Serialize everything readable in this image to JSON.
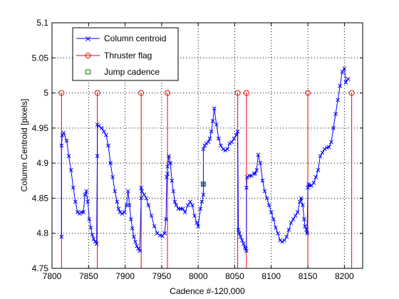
{
  "chart_data": {
    "type": "line",
    "xlabel": "Cadence #-120,000",
    "ylabel": "Column Centroid [pixels]",
    "xlim": [
      7800,
      8225
    ],
    "ylim": [
      4.75,
      5.1
    ],
    "x_ticks": [
      7800,
      7850,
      7900,
      7950,
      8000,
      8050,
      8100,
      8150,
      8200
    ],
    "y_ticks": [
      4.75,
      4.8,
      4.85,
      4.9,
      4.95,
      5,
      5.05,
      5.1
    ],
    "x_tick_labels": [
      "7800",
      "7850",
      "7900",
      "7950",
      "8000",
      "8050",
      "8100",
      "8150",
      "8200"
    ],
    "y_tick_labels": [
      "4.75",
      "4.8",
      "4.85",
      "4.9",
      "4.95",
      "5",
      "5.05",
      "5.1"
    ],
    "grid": true,
    "legend_position": "top-left",
    "series": [
      {
        "name": "Column centroid",
        "color": "#0000ff",
        "marker": "x",
        "x": [
          7813,
          7813,
          7814,
          7816,
          7820,
          7823,
          7826,
          7829,
          7832,
          7835,
          7838,
          7840,
          7843,
          7845,
          7847,
          7849,
          7851,
          7853,
          7855,
          7857,
          7859,
          7861,
          7862,
          7862,
          7864,
          7868,
          7871,
          7874,
          7877,
          7880,
          7883,
          7886,
          7889,
          7891,
          7893,
          7896,
          7899,
          7902,
          7904,
          7906,
          7908,
          7910,
          7912,
          7914,
          7916,
          7918,
          7920,
          7922,
          7922,
          7923,
          7926,
          7929,
          7932,
          7936,
          7940,
          7944,
          7948,
          7951,
          7954,
          7956,
          7957,
          7958,
          7958,
          7960,
          7962,
          7964,
          7966,
          7968,
          7970,
          7973,
          7976,
          7979,
          7982,
          7986,
          7989,
          7992,
          7995,
          7998,
          8000,
          8003,
          8005,
          8007,
          8007,
          8007,
          8009,
          8011,
          8014,
          8016,
          8018,
          8020,
          8022,
          8025,
          8028,
          8031,
          8034,
          8037,
          8040,
          8043,
          8046,
          8049,
          8052,
          8054,
          8055,
          8056,
          8058,
          8060,
          8062,
          8064,
          8065,
          8066,
          8066,
          8067,
          8070,
          8073,
          8076,
          8078,
          8080,
          8082,
          8085,
          8088,
          8091,
          8094,
          8097,
          8100,
          8103,
          8106,
          8109,
          8112,
          8115,
          8118,
          8121,
          8124,
          8127,
          8130,
          8133,
          8136,
          8139,
          8141,
          8143,
          8145,
          8146,
          8148,
          8149,
          8150,
          8151,
          8152,
          8155,
          8158,
          8161,
          8164,
          8167,
          8170,
          8173,
          8176,
          8179,
          8182,
          8185,
          8188,
          8191,
          8194,
          8197,
          8200,
          8202,
          8205
        ],
        "y": [
          4.795,
          4.925,
          4.94,
          4.943,
          4.932,
          4.91,
          4.89,
          4.865,
          4.845,
          4.83,
          4.828,
          4.83,
          4.83,
          4.855,
          4.86,
          4.845,
          4.82,
          4.808,
          4.798,
          4.792,
          4.788,
          4.785,
          4.91,
          4.955,
          4.953,
          4.95,
          4.945,
          4.94,
          4.925,
          4.9,
          4.88,
          4.86,
          4.845,
          4.835,
          4.83,
          4.828,
          4.83,
          4.84,
          4.86,
          4.84,
          4.82,
          4.807,
          4.795,
          4.788,
          4.782,
          4.778,
          4.775,
          4.85,
          4.865,
          4.86,
          4.855,
          4.85,
          4.84,
          4.825,
          4.81,
          4.8,
          4.797,
          4.796,
          4.8,
          4.82,
          4.88,
          4.885,
          4.895,
          4.91,
          4.9,
          4.875,
          4.86,
          4.845,
          4.84,
          4.835,
          4.835,
          4.835,
          4.83,
          4.84,
          4.845,
          4.84,
          4.825,
          4.815,
          4.81,
          4.835,
          4.845,
          4.855,
          4.87,
          4.92,
          4.925,
          4.928,
          4.93,
          4.935,
          4.945,
          4.96,
          4.978,
          4.955,
          4.935,
          4.925,
          4.92,
          4.918,
          4.92,
          4.928,
          4.93,
          4.935,
          4.94,
          4.945,
          4.805,
          4.8,
          4.795,
          4.79,
          4.785,
          4.78,
          4.778,
          4.775,
          4.865,
          4.88,
          4.882,
          4.882,
          4.885,
          4.885,
          4.89,
          4.912,
          4.9,
          4.875,
          4.86,
          4.85,
          4.84,
          4.83,
          4.82,
          4.808,
          4.8,
          4.79,
          4.788,
          4.79,
          4.795,
          4.805,
          4.815,
          4.82,
          4.825,
          4.83,
          4.845,
          4.85,
          4.84,
          4.82,
          4.81,
          4.805,
          4.8,
          4.865,
          4.87,
          4.868,
          4.868,
          4.872,
          4.88,
          4.89,
          4.91,
          4.915,
          4.92,
          4.922,
          4.923,
          4.93,
          4.95,
          4.97,
          4.99,
          5.01,
          5.03,
          5.035,
          5.015,
          5.02
        ]
      },
      {
        "name": "Thruster flag",
        "color": "#ff0000",
        "marker": "o",
        "x": [
          7813,
          7862,
          7922,
          7958,
          8054,
          8066,
          8150,
          8210
        ],
        "y": [
          5,
          5,
          5,
          5,
          5,
          5,
          5,
          5
        ]
      },
      {
        "name": "Jump cadence",
        "color": "#008000",
        "marker": "s",
        "x": [
          8007
        ],
        "y": [
          4.87
        ]
      }
    ]
  }
}
